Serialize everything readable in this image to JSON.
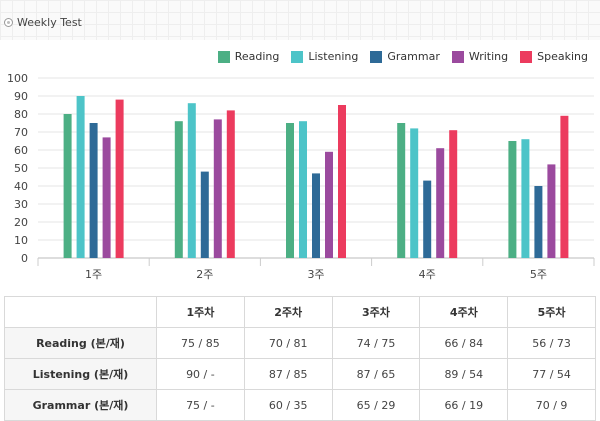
{
  "header": {
    "title": "Weekly Test"
  },
  "colors": {
    "Reading": "#4caf84",
    "Listening": "#4dc4c8",
    "Grammar": "#2e6a97",
    "Writing": "#9b4a9e",
    "Speaking": "#ec3b5e"
  },
  "chart_data": {
    "type": "bar",
    "categories": [
      "1주",
      "2주",
      "3주",
      "4주",
      "5주"
    ],
    "series": [
      {
        "name": "Reading",
        "values": [
          80,
          76,
          75,
          75,
          65
        ]
      },
      {
        "name": "Listening",
        "values": [
          90,
          86,
          76,
          72,
          66
        ]
      },
      {
        "name": "Grammar",
        "values": [
          75,
          48,
          47,
          43,
          40
        ]
      },
      {
        "name": "Writing",
        "values": [
          67,
          77,
          59,
          61,
          52
        ]
      },
      {
        "name": "Speaking",
        "values": [
          88,
          82,
          85,
          71,
          79
        ]
      }
    ],
    "yticks": [
      "0",
      "10",
      "20",
      "30",
      "40",
      "50",
      "60",
      "70",
      "80",
      "90",
      "100"
    ],
    "ylim": [
      0,
      100
    ],
    "grid": true,
    "legend": "top-right"
  },
  "table": {
    "headers": [
      "",
      "1주차",
      "2주차",
      "3주차",
      "4주차",
      "5주차"
    ],
    "rows": [
      {
        "label": "Reading (본/재)",
        "values": [
          "75 / 85",
          "70 / 81",
          "74 / 75",
          "66 / 84",
          "56 / 73"
        ]
      },
      {
        "label": "Listening (본/재)",
        "values": [
          "90 / -",
          "87 / 85",
          "87 / 65",
          "89 / 54",
          "77 / 54"
        ]
      },
      {
        "label": "Grammar (본/재)",
        "values": [
          "75 / -",
          "60 / 35",
          "65 / 29",
          "66 / 19",
          "70 / 9"
        ]
      }
    ]
  }
}
